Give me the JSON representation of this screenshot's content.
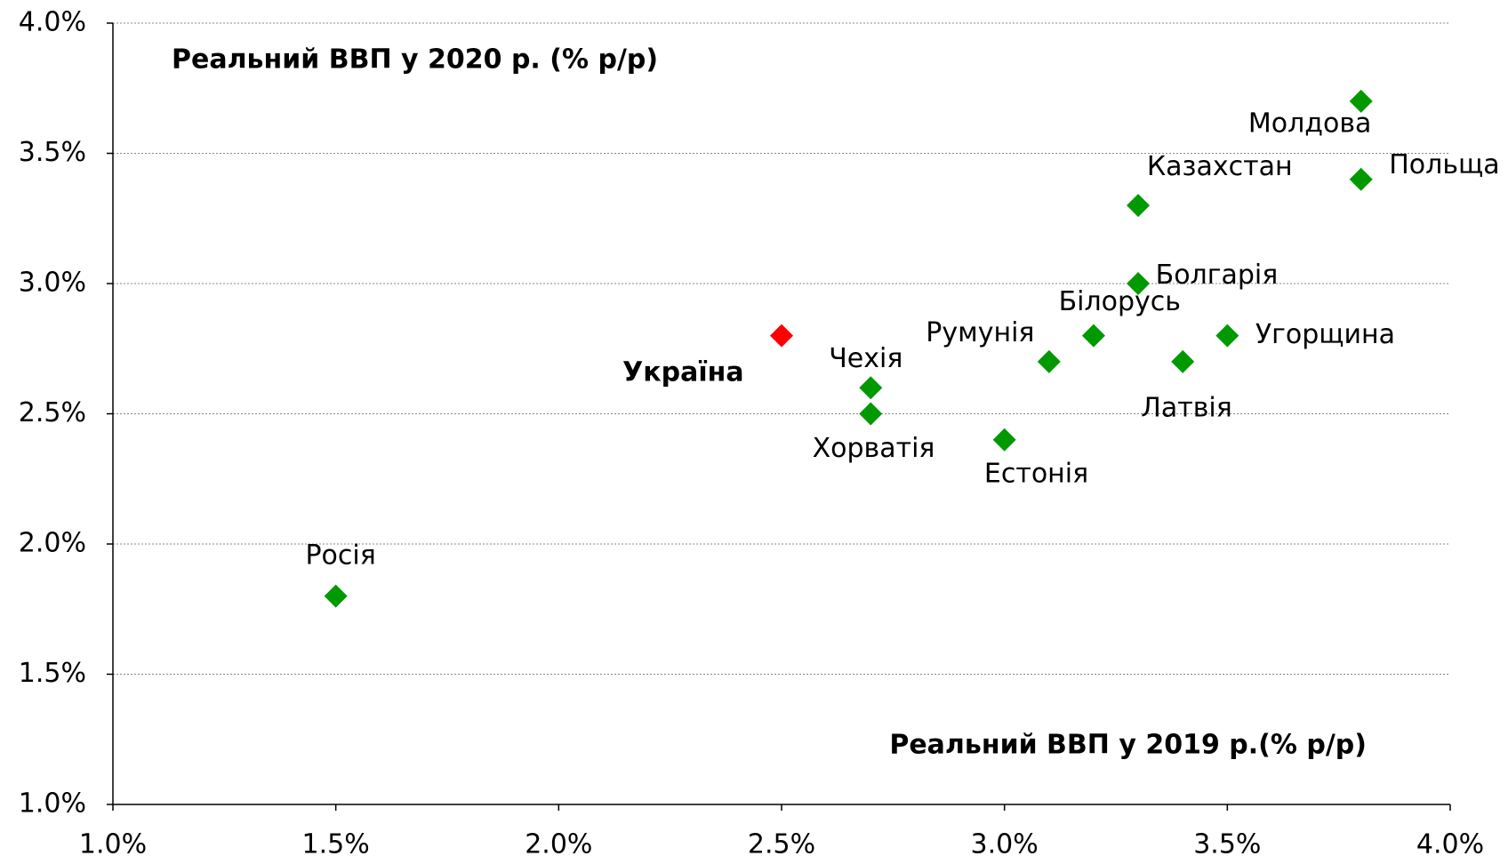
{
  "chart_data": {
    "type": "scatter",
    "y_label": "Реальний ВВП  у 2020 р. (% р/р)",
    "x_label": "Реальний ВВП у 2019 р.(% р/р)",
    "xlim": [
      1.0,
      4.0
    ],
    "xticks": [
      {
        "value": 1.0,
        "label": "1.0%"
      },
      {
        "value": 1.5,
        "label": "1.5%"
      },
      {
        "value": 2.0,
        "label": "2.0%"
      },
      {
        "value": 2.5,
        "label": "2.5%"
      },
      {
        "value": 3.0,
        "label": "3.0%"
      },
      {
        "value": 3.5,
        "label": "3.5%"
      },
      {
        "value": 4.0,
        "label": "4.0%"
      }
    ],
    "ylim": [
      1.0,
      4.0
    ],
    "yticks": [
      {
        "value": 1.0,
        "label": "1.0%"
      },
      {
        "value": 1.5,
        "label": "1.5%"
      },
      {
        "value": 2.0,
        "label": "2.0%"
      },
      {
        "value": 2.5,
        "label": "2.5%"
      },
      {
        "value": 3.0,
        "label": "3.0%"
      },
      {
        "value": 3.5,
        "label": "3.5%"
      },
      {
        "value": 4.0,
        "label": "4.0%"
      }
    ],
    "grid": "y",
    "points": [
      {
        "label": "Молдова",
        "x": 3.8,
        "y": 3.7,
        "color": "#009900"
      },
      {
        "label": "Польща",
        "x": 3.8,
        "y": 3.4,
        "color": "#009900"
      },
      {
        "label": "Казахстан",
        "x": 3.3,
        "y": 3.3,
        "color": "#009900"
      },
      {
        "label": "Болгарія",
        "x": 3.3,
        "y": 3.0,
        "color": "#009900"
      },
      {
        "label": "Білорусь",
        "x": 3.2,
        "y": 2.8,
        "color": "#009900"
      },
      {
        "label": "Угорщина",
        "x": 3.5,
        "y": 2.8,
        "color": "#009900"
      },
      {
        "label": "Румунія",
        "x": 3.1,
        "y": 2.7,
        "color": "#009900"
      },
      {
        "label": "Латвія",
        "x": 3.4,
        "y": 2.7,
        "color": "#009900"
      },
      {
        "label": "Україна",
        "x": 2.5,
        "y": 2.8,
        "color": "#ff0000",
        "bold": true
      },
      {
        "label": "Чехія",
        "x": 2.7,
        "y": 2.6,
        "color": "#009900"
      },
      {
        "label": "Хорватія",
        "x": 2.7,
        "y": 2.5,
        "color": "#009900"
      },
      {
        "label": "Естонія",
        "x": 3.0,
        "y": 2.4,
        "color": "#009900"
      },
      {
        "label": "Росія",
        "x": 1.5,
        "y": 1.8,
        "color": "#009900"
      }
    ]
  }
}
